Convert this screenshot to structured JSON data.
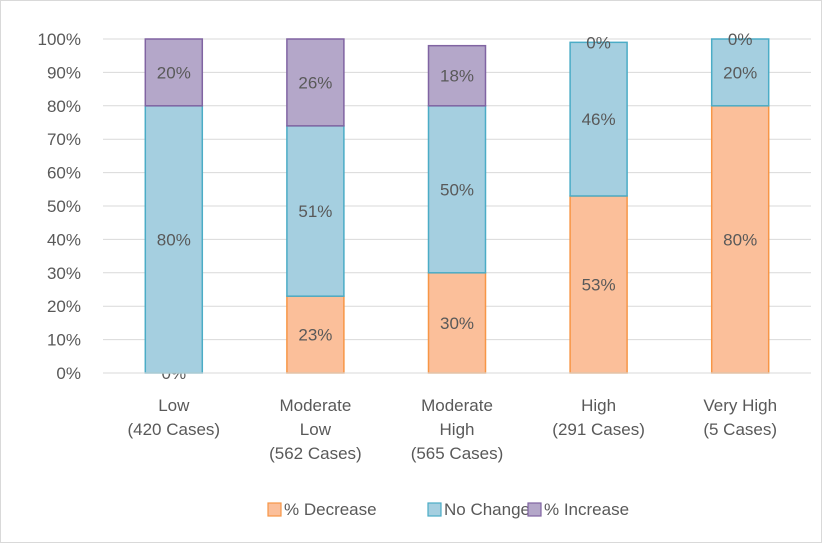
{
  "chart_data": {
    "type": "bar",
    "stacked": true,
    "categories": [
      [
        "Low",
        "(420 Cases)"
      ],
      [
        "Moderate",
        "Low",
        "(562 Cases)"
      ],
      [
        "Moderate",
        "High",
        "(565 Cases)"
      ],
      [
        "High",
        "(291 Cases)"
      ],
      [
        "Very High",
        "(5 Cases)"
      ]
    ],
    "series": [
      {
        "name": "% Decrease",
        "values": [
          0,
          23,
          30,
          53,
          80
        ],
        "labels": [
          "0%",
          "23%",
          "30%",
          "53%",
          "80%"
        ]
      },
      {
        "name": "No Change",
        "values": [
          80,
          51,
          50,
          46,
          20
        ],
        "labels": [
          "80%",
          "51%",
          "50%",
          "46%",
          "20%"
        ]
      },
      {
        "name": "% Increase",
        "values": [
          20,
          26,
          18,
          0,
          0
        ],
        "labels": [
          "20%",
          "26%",
          "18%",
          "0%",
          "0%"
        ]
      }
    ],
    "yticks": [
      "0%",
      "10%",
      "20%",
      "30%",
      "40%",
      "50%",
      "60%",
      "70%",
      "80%",
      "90%",
      "100%"
    ],
    "ylim": [
      0,
      100
    ],
    "grid": true,
    "legend": "bottom",
    "colors": {
      "% Decrease": {
        "fill": "#fbbf9a",
        "stroke": "#f79646"
      },
      "No Change": {
        "fill": "#a5cfe0",
        "stroke": "#4bacc6"
      },
      "% Increase": {
        "fill": "#b4a7c9",
        "stroke": "#8064a2"
      }
    },
    "title": "",
    "xlabel": "",
    "ylabel": ""
  }
}
